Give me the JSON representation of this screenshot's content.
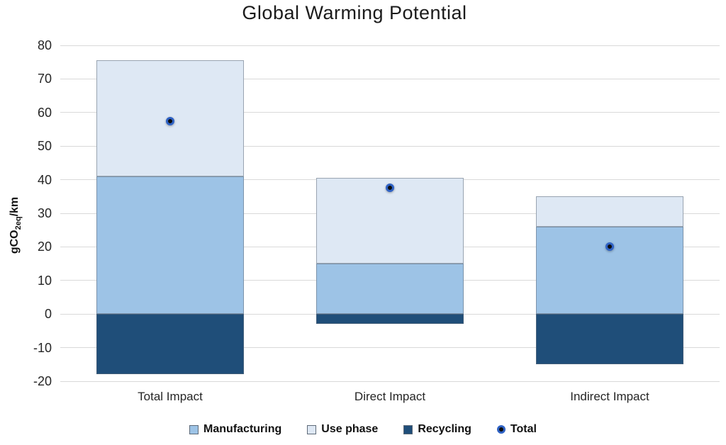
{
  "chart_data": {
    "type": "bar",
    "variant": "stacked-bars-with-total-point-markers",
    "title": "Global Warming Potential",
    "ylabel": {
      "prefix": "gCO",
      "subscript": "2eq",
      "suffix": "/km"
    },
    "categories": [
      "Total Impact",
      "Direct Impact",
      "Indirect Impact"
    ],
    "series": [
      {
        "name": "Manufacturing",
        "render": "bar",
        "color": "#9DC3E6",
        "values": [
          41,
          15,
          26
        ]
      },
      {
        "name": "Use phase",
        "render": "bar",
        "color": "#DEE8F4",
        "values": [
          34.5,
          25.5,
          9
        ]
      },
      {
        "name": "Recycling",
        "render": "bar",
        "color": "#1F4E79",
        "values": [
          -18,
          -3,
          -15
        ]
      },
      {
        "name": "Total",
        "render": "point",
        "color": "#2F62C4",
        "values": [
          57.5,
          37.5,
          20
        ]
      }
    ],
    "stack_tops": [
      75.5,
      40.5,
      35
    ],
    "ylim": [
      -20,
      80
    ],
    "yticks": [
      80,
      70,
      60,
      50,
      40,
      30,
      20,
      10,
      0,
      -10,
      -20
    ],
    "grid": "horizontal",
    "gridline_color": "#D9D9D9",
    "legend_position": "bottom",
    "marker_ring_color": "#2F62C4",
    "marker_core_color": "#0C0C0C"
  }
}
